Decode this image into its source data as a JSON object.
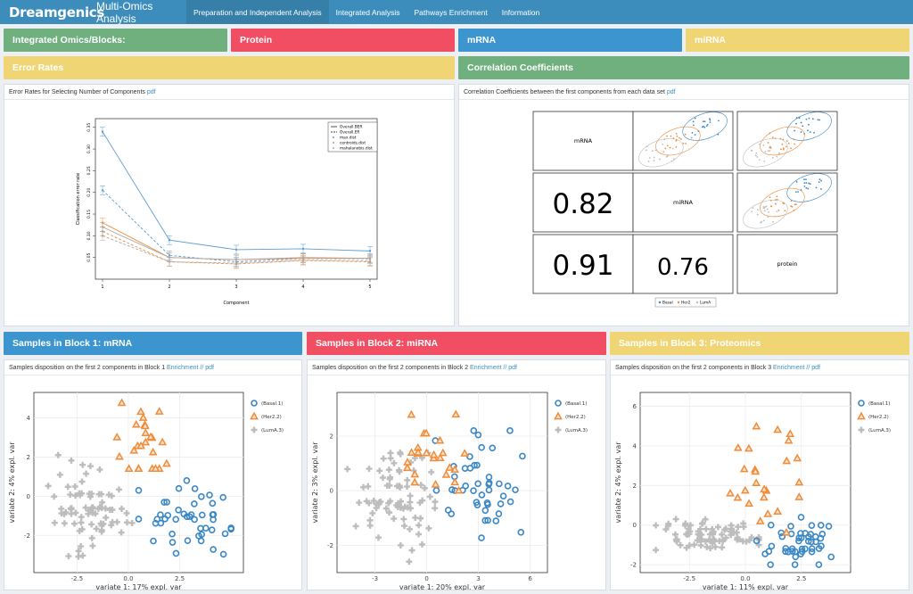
{
  "nav": {
    "logo": "Dreamgenics",
    "app_title": "Multi-Omics Analysis",
    "tabs": [
      {
        "label": "Preparation and Independent Analysis",
        "active": true
      },
      {
        "label": "Integrated Analysis",
        "active": false
      },
      {
        "label": "Pathways Enrichment",
        "active": false
      },
      {
        "label": "Information",
        "active": false
      }
    ]
  },
  "headers": {
    "integrated": "Integrated Omics/Blocks:",
    "protein": "Protein",
    "mrna": "mRNA",
    "mirna": "miRNA",
    "error_rates": "Error Rates",
    "correlation": "Correlation Coefficients",
    "block1": "Samples in Block 1: mRNA",
    "block2": "Samples in Block 2: miRNA",
    "block3": "Samples in Block 3: Proteomics"
  },
  "captions": {
    "error": "Error Rates for Selecting Number of Components",
    "corr": "Correlation Coefficients between the first components from each data set",
    "b1": "Samples disposition on the first 2 components in Block 1",
    "b2": "Samples disposition on the first 2 components in Block 2",
    "b3": "Samples disposition on the first 2 components in Block 3",
    "pdf": "pdf",
    "enrichment": "Enrichment",
    "sep": "//"
  },
  "colors": {
    "green": "#6fb07e",
    "red": "#f24e63",
    "blue": "#3c95cf",
    "yellow": "#f0d575",
    "series_blue": "#3a87c5",
    "series_orange": "#ef8c3a",
    "series_gray": "#bdbdbd"
  },
  "chart_data": [
    {
      "type": "line",
      "title": "",
      "xlabel": "Component",
      "ylabel": "Classification error rate",
      "x": [
        1,
        2,
        3,
        4,
        5
      ],
      "ylim": [
        0.0,
        0.37
      ],
      "yticks": [
        0.05,
        0.1,
        0.15,
        0.2,
        0.25,
        0.3,
        0.35
      ],
      "legend_position": "top-right",
      "legend": [
        "Overall.BER",
        "Overall.ER",
        "max.dist",
        "centroids.dist",
        "mahalanobis.dist"
      ],
      "series": [
        {
          "name": "max.dist",
          "kind": "BER",
          "color": "#5b9bd5",
          "values": [
            0.34,
            0.09,
            0.068,
            0.07,
            0.065
          ]
        },
        {
          "name": "max.dist",
          "kind": "ER",
          "color": "#5b9bd5",
          "values": [
            0.205,
            0.055,
            0.04,
            0.048,
            0.047
          ]
        },
        {
          "name": "centroids.dist",
          "kind": "BER",
          "color": "#ef8c3a",
          "values": [
            0.13,
            0.05,
            0.045,
            0.048,
            0.048
          ]
        },
        {
          "name": "centroids.dist",
          "kind": "ER",
          "color": "#ef8c3a",
          "values": [
            0.11,
            0.04,
            0.035,
            0.043,
            0.04
          ]
        },
        {
          "name": "mahalanobis.dist",
          "kind": "BER",
          "color": "#aaaaaa",
          "values": [
            0.12,
            0.05,
            0.045,
            0.05,
            0.048
          ]
        },
        {
          "name": "mahalanobis.dist",
          "kind": "ER",
          "color": "#aaaaaa",
          "values": [
            0.1,
            0.04,
            0.037,
            0.044,
            0.042
          ]
        }
      ]
    },
    {
      "type": "table",
      "title": "",
      "labels": [
        "mRNA",
        "miRNA",
        "protein"
      ],
      "correlations": {
        "miRNA_mRNA": "0.82",
        "protein_mRNA": "0.91",
        "protein_miRNA": "0.76"
      },
      "legend": [
        "Basal",
        "Her2",
        "LumA"
      ]
    },
    {
      "type": "scatter",
      "xlabel": "variate 1: 17% expl. var",
      "ylabel": "variate 2: 4% expl. var",
      "xlim": [
        -4.6,
        5.6
      ],
      "ylim": [
        -3.9,
        5.3
      ],
      "xticks": [
        "-2.5",
        "0.0",
        "2.5"
      ],
      "yticks": [
        "-2",
        "0",
        "2",
        "4"
      ],
      "legend": [
        "(Basal.1)",
        "(Her2.2)",
        "(LumA.3)"
      ],
      "clusters": [
        {
          "name": "Basal",
          "cx": 2.7,
          "cy": -1.0,
          "sx": 1.1,
          "sy": 1.0,
          "n": 45,
          "range": [
            0.5,
            5.0,
            -3.6,
            2.6
          ]
        },
        {
          "name": "Her2",
          "cx": 0.6,
          "cy": 2.9,
          "sx": 0.7,
          "sy": 1.0,
          "n": 25,
          "range": [
            -1.2,
            2.0,
            1.4,
            5.0
          ]
        },
        {
          "name": "LumA",
          "cx": -2.0,
          "cy": -0.6,
          "sx": 1.0,
          "sy": 1.1,
          "n": 80,
          "range": [
            -4.1,
            0.3,
            -3.2,
            2.1
          ]
        }
      ]
    },
    {
      "type": "scatter",
      "xlabel": "variate 1: 20% expl. var",
      "ylabel": "variate 2: 3% expl. var",
      "xlim": [
        -5.2,
        7.0
      ],
      "ylim": [
        -3.0,
        3.6
      ],
      "xticks": [
        "-3",
        "0",
        "3",
        "6"
      ],
      "yticks": [
        "-2",
        "0",
        "2"
      ],
      "legend": [
        "(Basal.1)",
        "(Her2.2)",
        "(LumA.3)"
      ],
      "clusters": [
        {
          "name": "Basal",
          "cx": 3.2,
          "cy": 0.2,
          "sx": 1.3,
          "sy": 1.0,
          "n": 45,
          "range": [
            0.5,
            6.2,
            -1.9,
            2.2
          ]
        },
        {
          "name": "Her2",
          "cx": 0.2,
          "cy": 1.3,
          "sx": 1.1,
          "sy": 0.8,
          "n": 25,
          "range": [
            -2.0,
            2.2,
            0.0,
            3.5
          ]
        },
        {
          "name": "LumA",
          "cx": -1.8,
          "cy": -0.4,
          "sx": 1.2,
          "sy": 0.9,
          "n": 80,
          "range": [
            -4.6,
            0.8,
            -2.6,
            1.6
          ]
        }
      ]
    },
    {
      "type": "scatter",
      "xlabel": "variate 1: 11% expl. var",
      "ylabel": "variate 2: 4% expl. var",
      "xlim": [
        -4.7,
        4.7
      ],
      "ylim": [
        -2.4,
        6.7
      ],
      "xticks": [
        "-2.5",
        "0.0",
        "2.5"
      ],
      "yticks": [
        "-2",
        "0",
        "2",
        "4",
        "6"
      ],
      "legend": [
        "(Basal.1)",
        "(Her2.2)",
        "(LumA.3)"
      ],
      "clusters": [
        {
          "name": "Basal",
          "cx": 2.3,
          "cy": -0.9,
          "sx": 0.9,
          "sy": 0.6,
          "n": 45,
          "range": [
            0.5,
            4.2,
            -2.0,
            2.0
          ]
        },
        {
          "name": "Her2",
          "cx": 0.7,
          "cy": 2.5,
          "sx": 1.0,
          "sy": 1.6,
          "n": 25,
          "range": [
            -1.5,
            2.4,
            -1.0,
            6.2
          ]
        },
        {
          "name": "LumA",
          "cx": -1.6,
          "cy": -0.5,
          "sx": 1.1,
          "sy": 0.4,
          "n": 80,
          "range": [
            -4.0,
            0.6,
            -1.6,
            0.9
          ]
        }
      ]
    }
  ]
}
